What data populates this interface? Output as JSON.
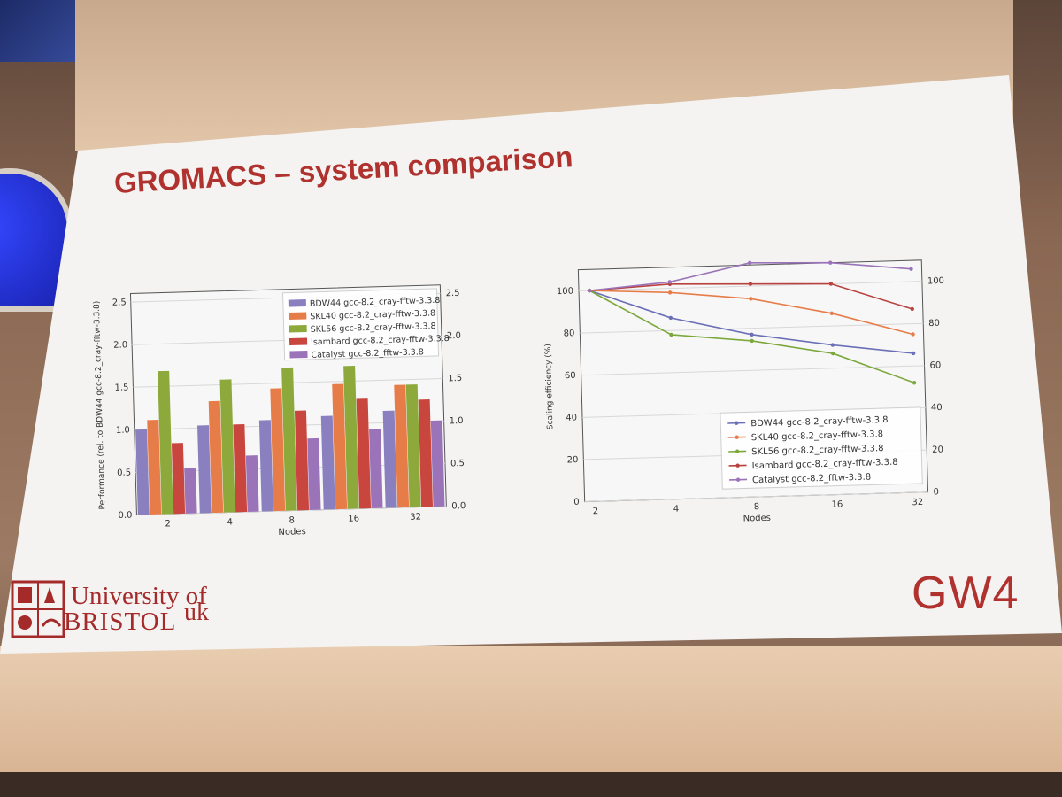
{
  "slide": {
    "title": "GROMACS – system comparison",
    "logos": {
      "bristol_line1": "University of",
      "bristol_line2": "BRISTOL",
      "bristol_suffix": "uk",
      "gw4": "GW4"
    },
    "colors": {
      "title": "#b0322f",
      "BDW44": "#8a7fbf",
      "SKL40": "#e67c48",
      "SKL56": "#8da83b",
      "Isambard": "#c9463e",
      "Catalyst": "#9a73b8"
    }
  },
  "chart_data": [
    {
      "type": "bar",
      "xlabel": "Nodes",
      "ylabel": "Performance (rel. to BDW44 gcc-8.2_cray-fftw-3.3.8)",
      "categories": [
        "2",
        "4",
        "8",
        "16",
        "32"
      ],
      "ylim": [
        0,
        2.6
      ],
      "yticks": [
        "0.0",
        "0.5",
        "1.0",
        "1.5",
        "2.0",
        "2.5"
      ],
      "secondary_ylim": [
        0,
        2.6
      ],
      "secondary_yticks": [
        "0.0",
        "0.5",
        "1.0",
        "1.5",
        "2.0",
        "2.5"
      ],
      "legend_position": "top-right",
      "grid": true,
      "series": [
        {
          "name": "BDW44 gcc-8.2_cray-fftw-3.3.8",
          "color": "#8a7fbf",
          "values": [
            1.0,
            1.03,
            1.07,
            1.1,
            1.14
          ]
        },
        {
          "name": "SKL40 gcc-8.2_cray-fftw-3.3.8",
          "color": "#e67c48",
          "values": [
            1.11,
            1.31,
            1.44,
            1.47,
            1.44
          ]
        },
        {
          "name": "SKL56 gcc-8.2_cray-fftw-3.3.8",
          "color": "#8da83b",
          "values": [
            1.68,
            1.56,
            1.68,
            1.68,
            1.44
          ]
        },
        {
          "name": "Isambard gcc-8.2_cray-fftw-3.3.8",
          "color": "#c9463e",
          "values": [
            0.83,
            1.03,
            1.17,
            1.3,
            1.26
          ]
        },
        {
          "name": "Catalyst gcc-8.2_fftw-3.3.8",
          "color": "#9a73b8",
          "values": [
            0.53,
            0.66,
            0.84,
            0.93,
            1.01
          ]
        }
      ]
    },
    {
      "type": "line",
      "xlabel": "Nodes",
      "ylabel": "Scaling efficiency (%)",
      "x": [
        "2",
        "4",
        "8",
        "16",
        "32"
      ],
      "ylim": [
        0,
        110
      ],
      "yticks": [
        "0",
        "20",
        "40",
        "60",
        "80",
        "100"
      ],
      "secondary_ylim": [
        0,
        110
      ],
      "secondary_yticks": [
        "0",
        "20",
        "40",
        "60",
        "80",
        "100"
      ],
      "legend_position": "bottom-right",
      "grid": true,
      "series": [
        {
          "name": "BDW44 gcc-8.2_cray-fftw-3.3.8",
          "color": "#6b6fb8",
          "values": [
            100,
            86,
            77,
            71,
            66
          ]
        },
        {
          "name": "SKL40 gcc-8.2_cray-fftw-3.3.8",
          "color": "#e67c48",
          "values": [
            100,
            98,
            94,
            86,
            75
          ]
        },
        {
          "name": "SKL56 gcc-8.2_cray-fftw-3.3.8",
          "color": "#7ca83b",
          "values": [
            100,
            78,
            74,
            67,
            52
          ]
        },
        {
          "name": "Isambard gcc-8.2_cray-fftw-3.3.8",
          "color": "#b8423e",
          "values": [
            100,
            102,
            101,
            100,
            87
          ]
        },
        {
          "name": "Catalyst gcc-8.2_fftw-3.3.8",
          "color": "#9a73b8",
          "values": [
            100,
            103,
            111,
            110,
            106
          ]
        }
      ]
    }
  ]
}
